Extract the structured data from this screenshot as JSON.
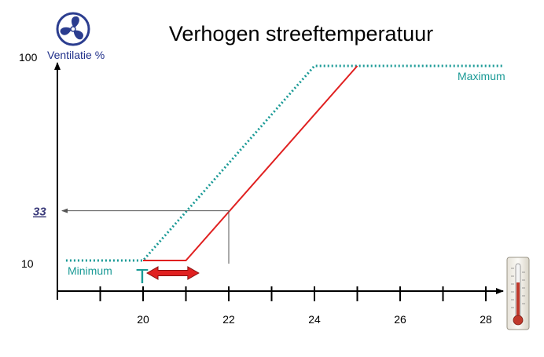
{
  "chart_data": {
    "type": "line",
    "title": "Verhogen streeftemperatuur",
    "ylabel": "Ventilatie %",
    "xlabel": "",
    "xlim": [
      18.2,
      28.4
    ],
    "ylim": [
      0,
      100
    ],
    "x_ticks": [
      20,
      22,
      24,
      26,
      28
    ],
    "x_minor_ticks": [
      19,
      21,
      23,
      25,
      27
    ],
    "y_ticks": [
      10,
      100
    ],
    "series": [
      {
        "style": "dotted",
        "color": "#1a9a96",
        "points": [
          [
            18.2,
            10
          ],
          [
            20,
            10
          ],
          [
            24,
            100
          ],
          [
            28.4,
            100
          ]
        ]
      },
      {
        "style": "solid",
        "color": "#e02020",
        "points": [
          [
            20,
            10
          ],
          [
            21,
            10
          ],
          [
            25,
            100
          ]
        ]
      }
    ],
    "annotations": {
      "maximum": "Maximum",
      "minimum": "Minimum",
      "setpoint_marker": "T",
      "readout_value": "33",
      "readout_x": 22,
      "readout_y": 33,
      "shift_from": 20,
      "shift_to": 21.3
    },
    "colors": {
      "dotted": "#1a9a96",
      "solid": "#e02020",
      "axis_label": "#1f2f8a",
      "readout": "#3a3a7a",
      "arrow": "#e02020"
    },
    "icons": {
      "fan": "fan-icon",
      "thermometer": "thermometer-icon"
    }
  }
}
